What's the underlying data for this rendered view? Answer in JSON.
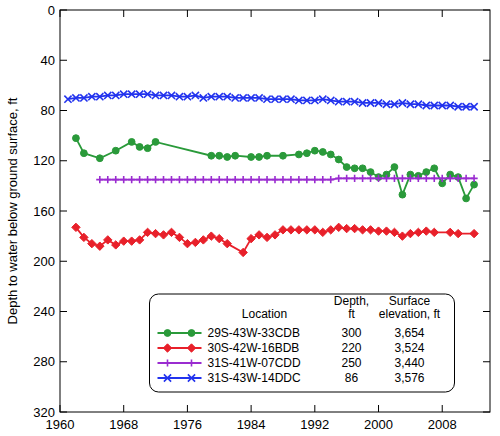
{
  "chart_data": {
    "type": "line",
    "y_label": "Depth to water below ground surface, ft",
    "xlim": [
      1960,
      2014
    ],
    "xticks": [
      1960,
      1968,
      1976,
      1984,
      1992,
      2000,
      2008
    ],
    "ylim": [
      320,
      0
    ],
    "yticks": [
      0,
      40,
      80,
      120,
      160,
      200,
      240,
      280,
      320
    ],
    "grid": false,
    "legend": "bottom",
    "legend_columns": [
      "Location",
      "Depth,\nft",
      "Surface\nelevation, ft"
    ],
    "series": [
      {
        "name": "29S-43W-33CDB",
        "color": "#2a9a3a",
        "marker": "circle",
        "line_style": "solid",
        "depth": 300,
        "surface_elevation": {
          "value": 3654,
          "label": "3,654"
        },
        "x": [
          1962,
          1963,
          1965,
          1967,
          1969,
          1970,
          1971,
          1972,
          1979,
          1980,
          1981,
          1982,
          1984,
          1985,
          1986,
          1988,
          1990,
          1991,
          1992,
          1993,
          1994,
          1995,
          1996,
          1997,
          1998,
          1999,
          2000,
          2001,
          2002,
          2003,
          2004,
          2005,
          2006,
          2007,
          2008,
          2009,
          2010,
          2011,
          2012
        ],
        "values": [
          102,
          114,
          118,
          112,
          105,
          109,
          110,
          105,
          116,
          116,
          117,
          116,
          117,
          117,
          116,
          116,
          115,
          114,
          112,
          113,
          115,
          119,
          125,
          126,
          126,
          129,
          133,
          131,
          125,
          147,
          131,
          132,
          129,
          126,
          138,
          131,
          133,
          150,
          139
        ]
      },
      {
        "name": "30S-42W-16BDB",
        "color": "#e8202a",
        "marker": "diamond",
        "line_style": "solid",
        "depth": 220,
        "surface_elevation": {
          "value": 3524,
          "label": "3,524"
        },
        "x": [
          1962,
          1963,
          1964,
          1965,
          1966,
          1967,
          1968,
          1969,
          1970,
          1971,
          1972,
          1973,
          1974,
          1975,
          1976,
          1977,
          1978,
          1979,
          1980,
          1981,
          1983,
          1984,
          1985,
          1986,
          1987,
          1988,
          1989,
          1990,
          1991,
          1992,
          1993,
          1994,
          1995,
          1996,
          1997,
          1998,
          1999,
          2000,
          2001,
          2002,
          2003,
          2004,
          2005,
          2006,
          2007,
          2009,
          2010,
          2012
        ],
        "values": [
          173,
          181,
          186,
          188,
          183,
          187,
          184,
          184,
          183,
          177,
          178,
          179,
          177,
          181,
          186,
          185,
          183,
          180,
          182,
          186,
          193,
          182,
          179,
          181,
          179,
          175,
          175,
          175,
          175,
          175,
          177,
          175,
          173,
          174,
          174,
          175,
          175,
          176,
          176,
          177,
          180,
          178,
          177,
          176,
          177,
          177,
          178,
          178
        ]
      },
      {
        "name": "31S-41W-07CDD",
        "color": "#9a2cd0",
        "marker": "plus",
        "line_style": "solid",
        "depth": 250,
        "surface_elevation": {
          "value": 3440,
          "label": "3,440"
        },
        "x": [
          1965,
          1966,
          1967,
          1968,
          1969,
          1970,
          1971,
          1972,
          1973,
          1974,
          1975,
          1976,
          1977,
          1978,
          1979,
          1980,
          1981,
          1982,
          1983,
          1984,
          1985,
          1986,
          1987,
          1988,
          1989,
          1990,
          1991,
          1992,
          1993,
          1994,
          1995,
          1996,
          1997,
          1998,
          1999,
          2000,
          2001,
          2002,
          2003,
          2004,
          2005,
          2006,
          2007,
          2008,
          2009,
          2010,
          2011,
          2012
        ],
        "values": [
          135,
          135,
          135,
          135,
          135,
          135,
          135,
          135,
          135,
          135,
          135,
          135,
          135,
          135,
          135,
          135,
          135,
          135,
          135,
          135,
          135,
          135,
          135,
          135,
          135,
          135,
          135,
          135,
          135,
          135,
          134,
          134,
          134,
          134,
          134,
          134,
          134,
          134,
          134,
          134,
          134,
          134,
          134,
          134,
          134,
          134,
          134,
          134
        ]
      },
      {
        "name": "31S-43W-14DDC",
        "color": "#2233ee",
        "marker": "x",
        "line_style": "solid",
        "depth": 86,
        "surface_elevation": {
          "value": 3576,
          "label": "3,576"
        },
        "x": [
          1961,
          1962,
          1963,
          1964,
          1965,
          1966,
          1967,
          1968,
          1969,
          1970,
          1971,
          1972,
          1973,
          1974,
          1975,
          1976,
          1977,
          1978,
          1979,
          1980,
          1981,
          1982,
          1983,
          1984,
          1985,
          1986,
          1987,
          1988,
          1989,
          1990,
          1991,
          1992,
          1993,
          1994,
          1995,
          1996,
          1997,
          1998,
          1999,
          2000,
          2001,
          2002,
          2003,
          2004,
          2005,
          2006,
          2007,
          2008,
          2009,
          2010,
          2011,
          2012
        ],
        "values": [
          71,
          70,
          70,
          69,
          69,
          68,
          68,
          67,
          67,
          67,
          67,
          68,
          68,
          68,
          69,
          69,
          68,
          70,
          69,
          69,
          69,
          70,
          70,
          70,
          70,
          71,
          71,
          71,
          71,
          72,
          72,
          72,
          71,
          72,
          73,
          73,
          73,
          74,
          74,
          74,
          75,
          75,
          74,
          75,
          75,
          76,
          76,
          76,
          76,
          77,
          77,
          77
        ]
      }
    ]
  }
}
